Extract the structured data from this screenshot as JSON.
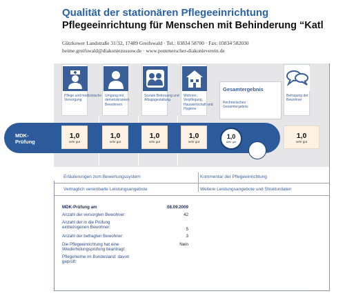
{
  "header": {
    "title": "Qualität der stationären Pflegeeinrichtung",
    "facility": "Pflegeeinrichtung für Menschen mit   Behinderung “Katl",
    "address": "Gützkower Landstraße 31/32, 17489 Greifswald · Tel.: 03834 58700 · Fax: 03834 582030",
    "contact": "heime.greifswald@diakoniezussow.de · www.pommerscher-diakonieverein.de"
  },
  "categories": [
    {
      "label": "Pflege und medizinische Versorgung",
      "icon": "nurse-icon"
    },
    {
      "label": "Umgang mit demenzkranken Bewohnern",
      "icon": "person-icon"
    },
    {
      "label": "Soziale Betreuung und Alltagsgestaltung",
      "icon": "group-icon"
    },
    {
      "label": "Wohnen, Verpflegung, Hauswirtschaft und Hygiene",
      "icon": "house-icon"
    },
    {
      "label": "Befragung der Bewohner",
      "icon": "speech-bubbles-icon"
    }
  ],
  "gesamt": {
    "title": "Gesamtergebnis",
    "subtitle": "Rechnerisches Gesamtergebnis"
  },
  "mdk": {
    "label_line1": "MDK-",
    "label_line2": "Prüfung",
    "grades": [
      {
        "value": "1,0",
        "text": "sehr gut"
      },
      {
        "value": "1,0",
        "text": "sehr gut"
      },
      {
        "value": "1,0",
        "text": "sehr gut"
      },
      {
        "value": "1,0",
        "text": "sehr gut"
      }
    ],
    "overall": {
      "value": "1,0",
      "text": "sehr gut"
    },
    "survey": {
      "value": "1,0",
      "text": "sehr gut"
    }
  },
  "links": {
    "row1_left": "Erläuterungen zum Bewertungssystem",
    "row1_right": "Kommentar der Pflegeeinrichtung",
    "row2_left": "Vertraglich vereinbarte Leistungsangebote",
    "row2_right": "Weitere Leistungsangebote und Strukturdaten"
  },
  "facts": [
    {
      "key": "MDK-Prüfung am",
      "value": "08.09.2009"
    },
    {
      "key": "Anzahl der versorgten Bewohner:",
      "value": "42"
    },
    {
      "key": "Anzahl der in die Prüfung einbezogenen Bewohner:",
      "value": "5"
    },
    {
      "key": "Anzahl der befragten Bewohner:",
      "value": "3"
    },
    {
      "key": "Die Pflegeeinrichtung hat eine Wiederholungsprüfung beantragt:",
      "value": "Nein"
    },
    {
      "key": "Pflegeheime im Bundesland: davon geprüft:",
      "value": ""
    }
  ],
  "colors": {
    "brand_blue": "#2d5a9a",
    "grade_bg": "#fdf2e4",
    "panel_gray": "#e6e6e8"
  }
}
